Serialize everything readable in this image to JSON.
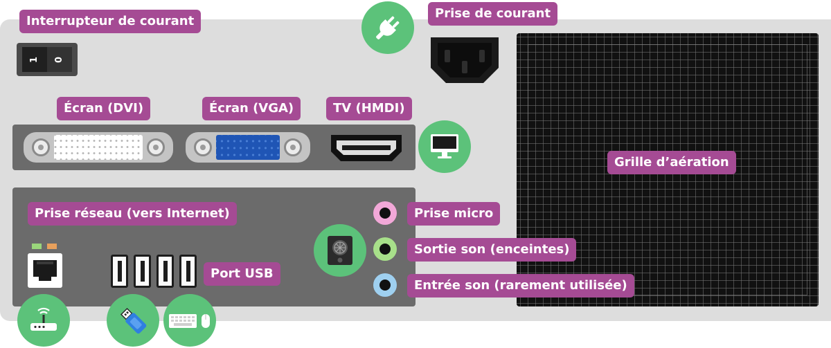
{
  "labels": {
    "power_switch": "Interrupteur de courant",
    "power_socket": "Prise de courant",
    "screen_dvi": "Écran (DVI)",
    "screen_vga": "Écran (VGA)",
    "tv_hdmi": "TV (HMDI)",
    "ventilation": "Grille d’aération",
    "network": "Prise réseau (vers Internet)",
    "usb": "Port USB",
    "mic": "Prise micro",
    "audio_out": "Sortie son (enceintes)",
    "audio_in": "Entrée son (rarement utilisée)"
  },
  "switch": {
    "on_mark": "1",
    "off_mark": "0"
  },
  "icons": {
    "power": "plug-icon",
    "display": "monitor-icon",
    "sound": "speaker-icon",
    "network": "router-icon",
    "usb": "usb-stick-icon",
    "peripherals": "keyboard-mouse-icon"
  },
  "colors": {
    "label_bg": "#a54b94",
    "icon_bubble": "#5cc27a",
    "case": "#dddddd",
    "panel": "#6b6b6b",
    "grille": "#111111",
    "jack_mic": "#f2a8d8",
    "jack_out": "#a8e08a",
    "jack_in": "#9fd0f0",
    "vga_blue": "#1f55b5",
    "led_green": "#9ad67b",
    "led_orange": "#e8a05c"
  }
}
